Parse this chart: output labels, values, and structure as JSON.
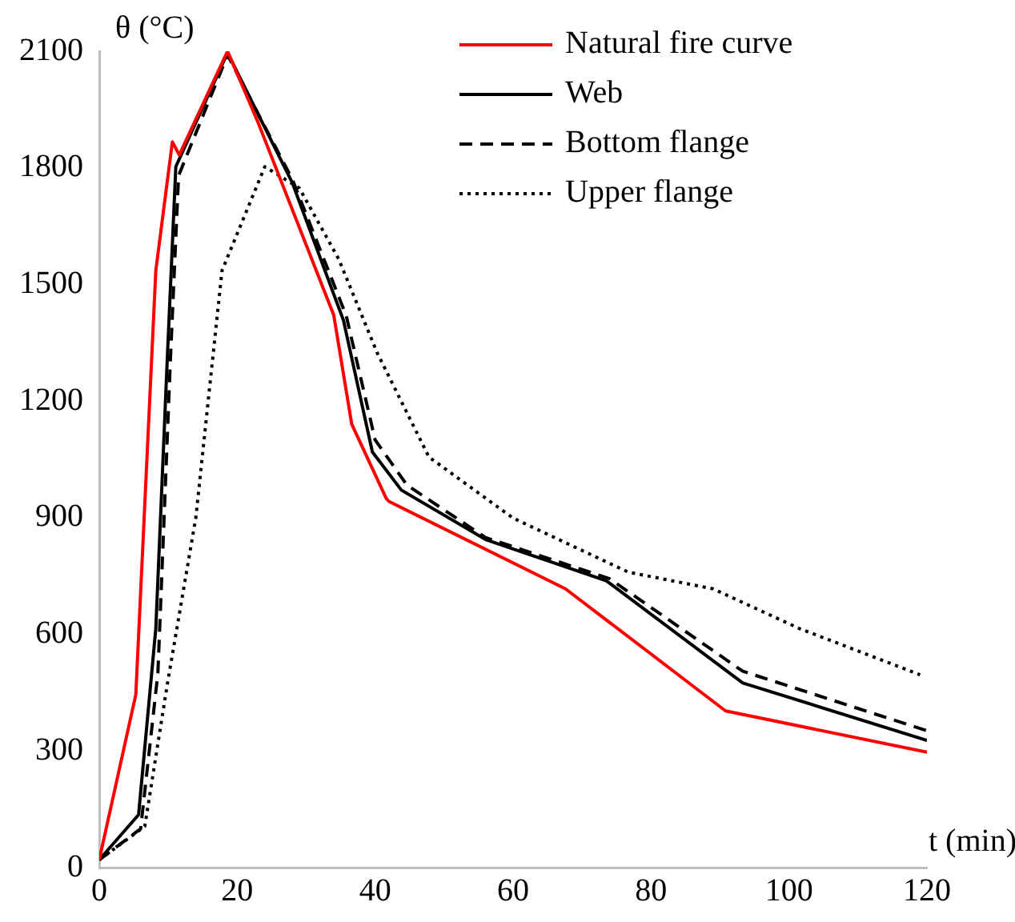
{
  "chart_data": {
    "type": "line",
    "xlabel": "t (min)",
    "ylabel": "θ (°C)",
    "xlim": [
      0,
      120
    ],
    "xticks": [
      0,
      20,
      40,
      60,
      80,
      100,
      120
    ],
    "ylim": [
      0,
      2100
    ],
    "yticks": [
      0,
      300,
      600,
      900,
      1200,
      1500,
      1800,
      2100
    ],
    "grid": false,
    "legend": "top right",
    "marker": "none",
    "series": [
      {
        "name": "Natural fire curve",
        "color": "#ff0000",
        "line_style": "solid",
        "x": [
          0,
          5.3,
          8.2,
          10.6,
          11.6,
          18.6,
          23,
          34,
          36.6,
          41.6,
          42,
          67.6,
          90.8,
          120
        ],
        "values": [
          20,
          445,
          1536,
          1867,
          1833,
          2100,
          1918,
          1421,
          1141,
          950,
          942,
          717,
          403,
          297
        ]
      },
      {
        "name": "Web",
        "color": "#000000",
        "line_style": "solid",
        "x": [
          0,
          5.7,
          8.2,
          9.9,
          11.1,
          18.6,
          28,
          35.4,
          39.6,
          43.8,
          56,
          73.5,
          93.3,
          120
        ],
        "values": [
          20,
          136,
          615,
          1324,
          1803,
          2096,
          1761,
          1408,
          1069,
          971,
          844,
          738,
          475,
          327
        ]
      },
      {
        "name": "Bottom flange",
        "color": "#000000",
        "line_style": "dashed",
        "x": [
          0,
          6,
          8.5,
          10.3,
          11.5,
          18.6,
          28,
          35.8,
          40,
          44.6,
          56,
          74,
          93.3,
          120
        ],
        "values": [
          20,
          100,
          500,
          1300,
          1780,
          2090,
          1770,
          1420,
          1100,
          984,
          849,
          743,
          505,
          352
        ]
      },
      {
        "name": "Upper flange",
        "color": "#000000",
        "line_style": "dotted",
        "x": [
          0,
          6.6,
          9.9,
          14,
          17.8,
          24,
          29,
          34.7,
          40.3,
          47.8,
          60,
          76.7,
          89,
          101.5,
          119
        ],
        "values": [
          20,
          106,
          475,
          900,
          1536,
          1803,
          1748,
          1566,
          1324,
          1056,
          899,
          760,
          717,
          615,
          496
        ]
      }
    ]
  }
}
